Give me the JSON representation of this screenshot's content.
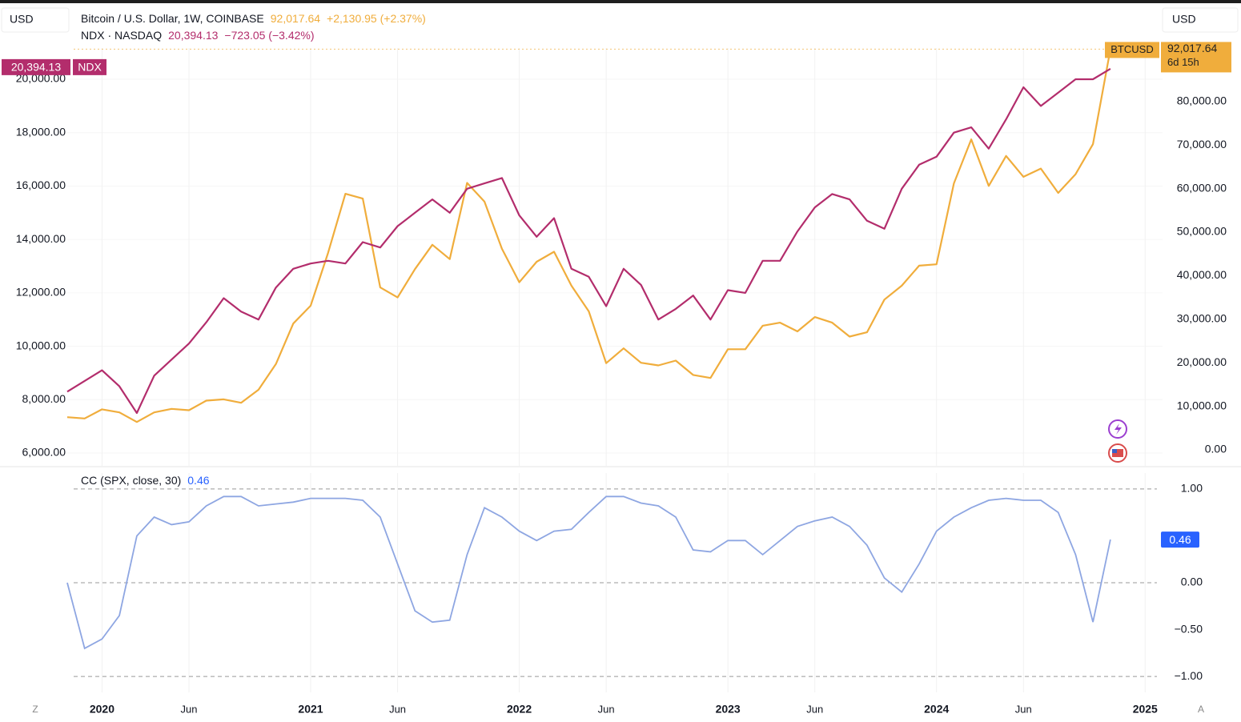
{
  "chart_data": [
    {
      "type": "line",
      "y_unit": "USD",
      "y2_unit": "USD",
      "x": [
        "2019-11",
        "2019-12",
        "2020-01",
        "2020-02",
        "2020-03",
        "2020-04",
        "2020-05",
        "2020-06",
        "2020-07",
        "2020-08",
        "2020-09",
        "2020-10",
        "2020-11",
        "2020-12",
        "2021-01",
        "2021-02",
        "2021-03",
        "2021-04",
        "2021-05",
        "2021-06",
        "2021-07",
        "2021-08",
        "2021-09",
        "2021-10",
        "2021-11",
        "2021-12",
        "2022-01",
        "2022-02",
        "2022-03",
        "2022-04",
        "2022-05",
        "2022-06",
        "2022-07",
        "2022-08",
        "2022-09",
        "2022-10",
        "2022-11",
        "2022-12",
        "2023-01",
        "2023-02",
        "2023-03",
        "2023-04",
        "2023-05",
        "2023-06",
        "2023-07",
        "2023-08",
        "2023-09",
        "2023-10",
        "2023-11",
        "2023-12",
        "2024-01",
        "2024-02",
        "2024-03",
        "2024-04",
        "2024-05",
        "2024-06",
        "2024-07",
        "2024-08",
        "2024-09",
        "2024-10",
        "2024-11"
      ],
      "xlim": [
        "2019-11",
        "2025-02"
      ],
      "xticks": [
        {
          "value": "2020-01",
          "label": "2020"
        },
        {
          "value": "2020-06",
          "label": "Jun"
        },
        {
          "value": "2021-01",
          "label": "2021"
        },
        {
          "value": "2021-06",
          "label": "Jun"
        },
        {
          "value": "2022-01",
          "label": "2022"
        },
        {
          "value": "2022-06",
          "label": "Jun"
        },
        {
          "value": "2023-01",
          "label": "2023"
        },
        {
          "value": "2023-06",
          "label": "Jun"
        },
        {
          "value": "2024-01",
          "label": "2024"
        },
        {
          "value": "2024-06",
          "label": "Jun"
        },
        {
          "value": "2025-01",
          "label": "2025"
        }
      ],
      "ylim": [
        5520,
        21170
      ],
      "yticks": [
        {
          "value": 6000,
          "label": "6,000.00"
        },
        {
          "value": 8000,
          "label": "8,000.00"
        },
        {
          "value": 10000,
          "label": "10,000.00"
        },
        {
          "value": 12000,
          "label": "12,000.00"
        },
        {
          "value": 14000,
          "label": "14,000.00"
        },
        {
          "value": 16000,
          "label": "16,000.00"
        },
        {
          "value": 18000,
          "label": "18,000.00"
        },
        {
          "value": 20000,
          "label": "20,000.00"
        }
      ],
      "y2lim": [
        -3680,
        92280
      ],
      "y2ticks": [
        {
          "value": 0,
          "label": "0.00"
        },
        {
          "value": 10000,
          "label": "10,000.00"
        },
        {
          "value": 20000,
          "label": "20,000.00"
        },
        {
          "value": 30000,
          "label": "30,000.00"
        },
        {
          "value": 40000,
          "label": "40,000.00"
        },
        {
          "value": 50000,
          "label": "50,000.00"
        },
        {
          "value": 60000,
          "label": "60,000.00"
        },
        {
          "value": 70000,
          "label": "70,000.00"
        },
        {
          "value": 80000,
          "label": "80,000.00"
        }
      ],
      "grid": true,
      "series": [
        {
          "name": "Bitcoin / U.S. Dollar, 1W, COINBASE",
          "symbol": "BTCUSD",
          "color": "#f0ad3c",
          "axis": "y2",
          "last_label": "92,017.64",
          "change_label": "+2,130.95 (+2.37%)",
          "countdown": "6d 15h",
          "values": [
            7500,
            7200,
            9300,
            8600,
            6400,
            8600,
            9400,
            9100,
            11300,
            11600,
            10800,
            13800,
            19700,
            29000,
            33100,
            45200,
            58800,
            57700,
            37300,
            35000,
            41500,
            47100,
            43800,
            61300,
            57000,
            46200,
            38500,
            43200,
            45500,
            37700,
            31800,
            19900,
            23300,
            20000,
            19400,
            20500,
            17200,
            16500,
            23100,
            23100,
            28500,
            29200,
            27200,
            30500,
            29200,
            26000,
            27000,
            34500,
            37700,
            42300,
            42600,
            61200,
            71300,
            60600,
            67500,
            62700,
            64600,
            59000,
            63300,
            70200,
            92017.64
          ]
        },
        {
          "name": "NDX · NASDAQ",
          "symbol": "NDX",
          "color": "#b32d6c",
          "axis": "y",
          "last_label": "20,394.13",
          "change_label": "−723.05 (−3.42%)",
          "values": [
            8300,
            8700,
            9100,
            8500,
            7500,
            8900,
            9500,
            10100,
            10900,
            11800,
            11300,
            11000,
            12200,
            12900,
            13100,
            13200,
            13100,
            13900,
            13700,
            14500,
            15000,
            15500,
            15000,
            15900,
            16100,
            16300,
            14900,
            14100,
            14800,
            12900,
            12600,
            11500,
            12900,
            12300,
            11000,
            11400,
            11900,
            11000,
            12100,
            12000,
            13200,
            13200,
            14300,
            15200,
            15700,
            15500,
            14700,
            14400,
            15900,
            16800,
            17100,
            18000,
            18200,
            17400,
            18500,
            19700,
            19000,
            19500,
            20000,
            20000,
            20394.13
          ]
        }
      ]
    },
    {
      "type": "line",
      "title": "CC (SPX, close, 30)",
      "ylim": [
        -1.17,
        1.17
      ],
      "yticks": [
        {
          "value": 1,
          "label": "1.00"
        },
        {
          "value": 0,
          "label": "0.00"
        },
        {
          "value": -0.5,
          "label": "−0.50"
        },
        {
          "value": -1,
          "label": "−1.00"
        }
      ],
      "hlines": [
        1,
        0,
        -1
      ],
      "color": "#8ea6e2",
      "tag_color": "#2962ff",
      "values": [
        0,
        -0.7,
        -0.6,
        -0.35,
        0.5,
        0.7,
        0.62,
        0.65,
        0.82,
        0.92,
        0.92,
        0.82,
        0.84,
        0.86,
        0.9,
        0.9,
        0.9,
        0.88,
        0.7,
        0.2,
        -0.3,
        -0.42,
        -0.4,
        0.3,
        0.8,
        0.7,
        0.55,
        0.45,
        0.55,
        0.57,
        0.75,
        0.92,
        0.92,
        0.85,
        0.82,
        0.7,
        0.35,
        0.33,
        0.45,
        0.45,
        0.3,
        0.45,
        0.6,
        0.66,
        0.7,
        0.6,
        0.4,
        0.05,
        -0.1,
        0.2,
        0.55,
        0.7,
        0.8,
        0.88,
        0.9,
        0.88,
        0.88,
        0.75,
        0.3,
        -0.42,
        0.46
      ]
    }
  ],
  "toolbar": {
    "left_button": "Z",
    "right_button": "A"
  }
}
